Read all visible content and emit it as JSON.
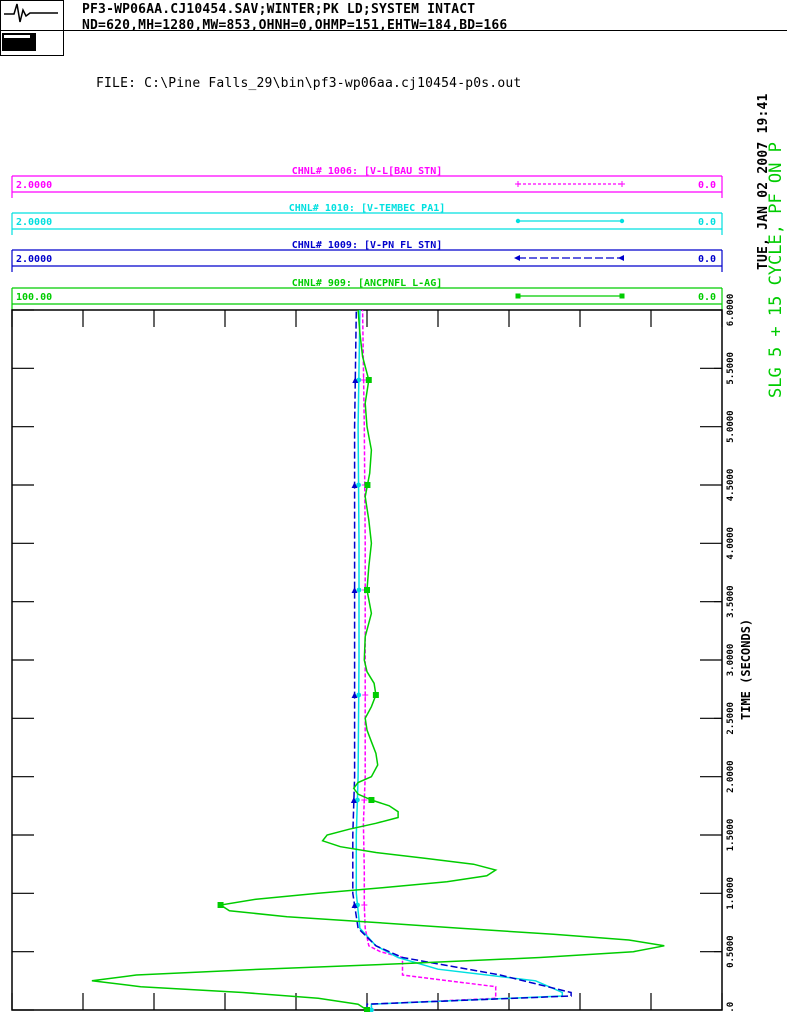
{
  "header": {
    "line1": "PF3-WP06AA.CJ10454.SAV;WINTER;PK LD;SYSTEM INTACT",
    "line2": "ND=620,MH=1280,MW=853,OHNH=0,OHMP=151,EHTW=184,BD=166",
    "file": "FILE: C:\\Pine Falls_29\\bin\\pf3-wp06aa.cj10454-p0s.out",
    "date": "TUE, JAN 02 2007  19:41",
    "case": "SLG 5 + 15 CYCLE, PF ON P"
  },
  "legend": [
    {
      "label": "CHNL# 1006: [V-L[BAU STN]",
      "color": "#ff00ff",
      "scale": "2.0000",
      "right": "0.0"
    },
    {
      "label": "CHNL# 1010: [V-TEMBEC PA1]",
      "color": "#00e0e0",
      "scale": "2.0000",
      "right": "0.0"
    },
    {
      "label": "CHNL# 1009: [V-PN FL STN]",
      "color": "#0000cc",
      "scale": "2.0000",
      "right": "0.0"
    },
    {
      "label": "CHNL# 909: [ANCPNFL L-AG]",
      "color": "#00cc00",
      "scale": "100.00",
      "right": "0.0"
    }
  ],
  "chart_data": {
    "type": "line",
    "xlabel": "TIME (SECONDS)",
    "xlim": [
      0,
      6
    ],
    "x_ticks": [
      "0.0",
      "0.5000",
      "1.0000",
      "1.5000",
      "2.0000",
      "2.5000",
      "3.0000",
      "3.5000",
      "4.0000",
      "4.5000",
      "5.0000",
      "5.5000",
      "6.0000"
    ],
    "ylim": [
      -4,
      4
    ],
    "series": [
      {
        "name": "CHNL# 1006: [V-L[BAU STN]",
        "color": "#ff00ff",
        "x": [
          0.0,
          0.05,
          0.1,
          0.2,
          0.3,
          0.45,
          0.5,
          0.55,
          0.7,
          0.9,
          1.2,
          1.6,
          2.0,
          3.0,
          4.0,
          5.0,
          6.0
        ],
        "y": [
          0.05,
          0.05,
          1.45,
          1.45,
          0.4,
          0.4,
          0.15,
          0.02,
          -0.02,
          -0.03,
          -0.03,
          -0.04,
          -0.02,
          -0.02,
          -0.02,
          -0.03,
          -0.05
        ]
      },
      {
        "name": "CHNL# 1010: [V-TEMBEC PA1]",
        "color": "#00e0e0",
        "x": [
          0.0,
          0.05,
          0.12,
          0.15,
          0.25,
          0.35,
          0.45,
          0.55,
          0.7,
          1.0,
          1.5,
          2.0,
          3.0,
          4.0,
          5.0,
          6.0
        ],
        "y": [
          0.05,
          0.05,
          2.2,
          2.2,
          1.9,
          0.8,
          0.35,
          0.1,
          -0.08,
          -0.12,
          -0.12,
          -0.1,
          -0.09,
          -0.09,
          -0.1,
          -0.08
        ]
      },
      {
        "name": "CHNL# 1009: [V-PN FL STN]",
        "color": "#0000cc",
        "x": [
          0.0,
          0.05,
          0.12,
          0.15,
          0.3,
          0.45,
          0.55,
          0.7,
          1.0,
          1.5,
          2.0,
          3.0,
          4.0,
          5.0,
          6.0
        ],
        "y": [
          0.0,
          0.0,
          2.3,
          2.3,
          1.5,
          0.4,
          0.1,
          -0.1,
          -0.16,
          -0.16,
          -0.14,
          -0.14,
          -0.14,
          -0.14,
          -0.12
        ]
      },
      {
        "name": "CHNL# 909: [ANCPNFL L-AG]",
        "color": "#00cc00",
        "x": [
          0.0,
          0.05,
          0.1,
          0.15,
          0.2,
          0.25,
          0.3,
          0.35,
          0.4,
          0.45,
          0.5,
          0.55,
          0.6,
          0.65,
          0.7,
          0.75,
          0.8,
          0.85,
          0.9,
          0.95,
          1.0,
          1.05,
          1.1,
          1.15,
          1.2,
          1.25,
          1.3,
          1.35,
          1.4,
          1.45,
          1.5,
          1.55,
          1.6,
          1.65,
          1.7,
          1.75,
          1.8,
          1.85,
          1.9,
          1.95,
          2.0,
          2.1,
          2.2,
          2.3,
          2.4,
          2.5,
          2.6,
          2.7,
          2.8,
          2.9,
          3.0,
          3.2,
          3.4,
          3.6,
          3.8,
          4.0,
          4.2,
          4.4,
          4.6,
          4.8,
          5.0,
          5.2,
          5.4,
          5.6,
          5.8,
          6.0
        ],
        "y": [
          0.0,
          -0.1,
          -0.55,
          -1.4,
          -2.55,
          -3.1,
          -2.6,
          -1.2,
          0.5,
          1.95,
          3.0,
          3.35,
          2.95,
          2.1,
          1.05,
          0.1,
          -0.9,
          -1.55,
          -1.65,
          -1.25,
          -0.55,
          0.2,
          0.9,
          1.35,
          1.45,
          1.2,
          0.65,
          0.1,
          -0.3,
          -0.5,
          -0.45,
          -0.2,
          0.1,
          0.35,
          0.35,
          0.25,
          0.05,
          -0.1,
          -0.15,
          -0.1,
          0.05,
          0.12,
          0.1,
          0.05,
          0.0,
          -0.02,
          0.05,
          0.1,
          0.08,
          0.0,
          -0.03,
          -0.02,
          0.05,
          0.0,
          0.02,
          0.05,
          0.02,
          -0.02,
          0.03,
          0.05,
          0.0,
          -0.02,
          0.02,
          -0.05,
          -0.08,
          -0.1
        ]
      }
    ]
  }
}
